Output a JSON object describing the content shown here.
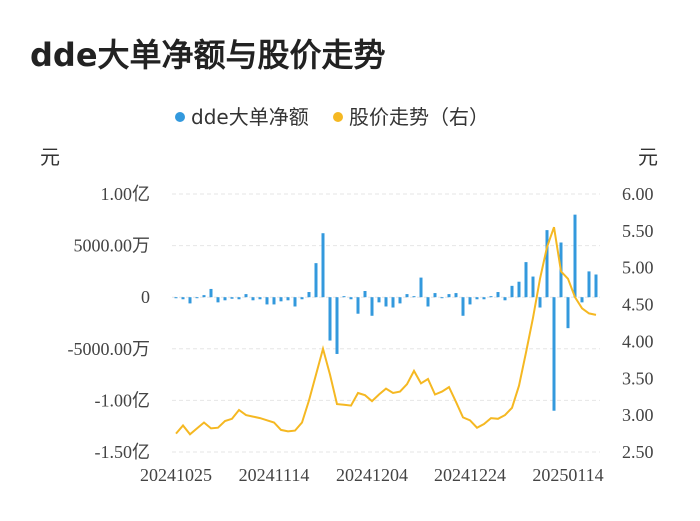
{
  "title": "dde大单净额与股价走势",
  "colors": {
    "bar": "#3399dd",
    "line": "#f5b822",
    "grid": "#e6e6e6"
  },
  "chart_data": {
    "type": "bar+line",
    "legend": {
      "position": "top-center",
      "items": [
        "dde大单净额",
        "股价走势（右）"
      ]
    },
    "left_unit": "元",
    "right_unit": "元",
    "left_ticks": [
      "1.00亿",
      "5000.00万",
      "0",
      "-5000.00万",
      "-1.00亿",
      "-1.50亿"
    ],
    "left_tick_values": [
      10000,
      5000,
      0,
      -5000,
      -10000,
      -15000
    ],
    "right_ticks": [
      "6.00",
      "5.50",
      "5.00",
      "4.50",
      "4.00",
      "3.50",
      "3.00",
      "2.50"
    ],
    "right_tick_values": [
      6.0,
      5.5,
      5.0,
      4.5,
      4.0,
      3.5,
      3.0,
      2.5
    ],
    "ylim_left": [
      -15000,
      10000
    ],
    "ylim_right": [
      2.5,
      6.0
    ],
    "x_tick_labels": [
      "20241025",
      "20241114",
      "20241204",
      "20241224",
      "20250114"
    ],
    "x_tick_indices": [
      0,
      14,
      28,
      42,
      56
    ],
    "grid": true,
    "series": [
      {
        "name": "dde大单净额",
        "type": "bar",
        "axis": "left",
        "values_wan": [
          -100,
          -200,
          -600,
          0,
          200,
          800,
          -500,
          -300,
          -150,
          -200,
          300,
          -300,
          -200,
          -700,
          -700,
          -400,
          -300,
          -900,
          -200,
          500,
          3300,
          6200,
          -4200,
          -5500,
          100,
          -200,
          -1600,
          600,
          -1800,
          -500,
          -900,
          -1000,
          -600,
          300,
          100,
          1900,
          -900,
          400,
          0,
          300,
          400,
          -1800,
          -700,
          -200,
          -200,
          100,
          500,
          -300,
          1100,
          1500,
          3400,
          2000,
          -1000,
          6500,
          -11000,
          5300,
          -3000,
          8000,
          -500,
          2500,
          2200
        ]
      },
      {
        "name": "股价走势（右）",
        "type": "line",
        "axis": "right",
        "values": [
          2.75,
          2.86,
          2.74,
          2.82,
          2.9,
          2.82,
          2.83,
          2.92,
          2.95,
          3.07,
          3.0,
          2.98,
          2.96,
          2.93,
          2.9,
          2.8,
          2.78,
          2.79,
          2.9,
          3.2,
          3.55,
          3.9,
          3.55,
          3.15,
          3.14,
          3.13,
          3.3,
          3.27,
          3.19,
          3.28,
          3.36,
          3.3,
          3.32,
          3.42,
          3.6,
          3.43,
          3.49,
          3.28,
          3.32,
          3.38,
          3.18,
          2.97,
          2.93,
          2.83,
          2.88,
          2.96,
          2.95,
          3.0,
          3.1,
          3.4,
          3.85,
          4.32,
          4.85,
          5.28,
          5.55,
          4.95,
          4.85,
          4.6,
          4.45,
          4.38,
          4.36
        ]
      }
    ]
  }
}
